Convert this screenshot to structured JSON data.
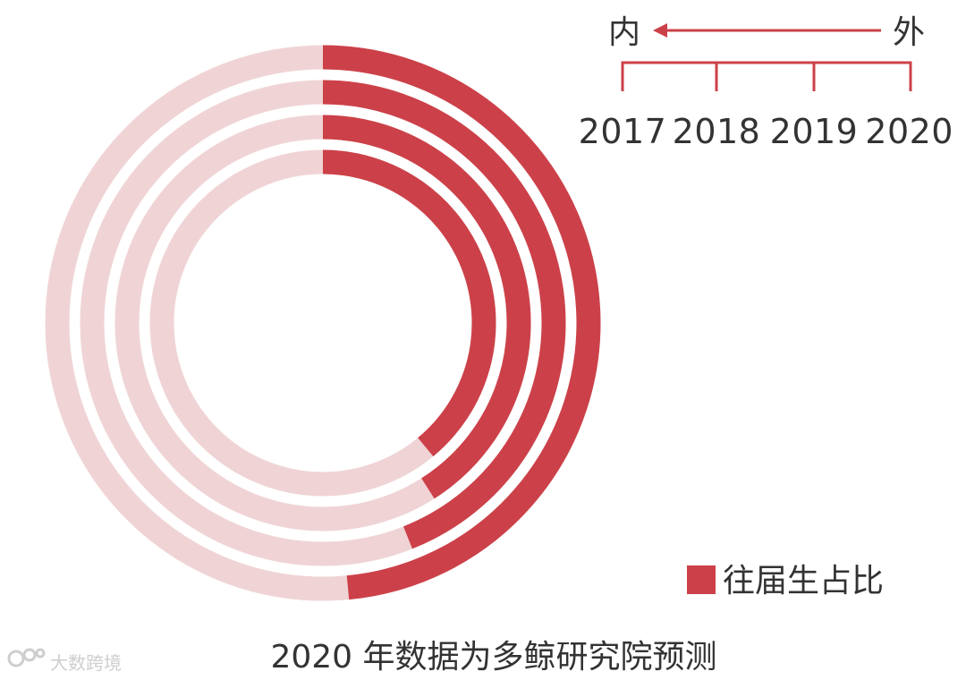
{
  "chart_data": {
    "type": "pie",
    "subtype": "concentric-donut",
    "title": "",
    "rings_order_inner_to_outer": [
      "2017",
      "2018",
      "2019",
      "2020"
    ],
    "series": [
      {
        "name": "2017",
        "value": 39
      },
      {
        "name": "2018",
        "value": 41
      },
      {
        "name": "2019",
        "value": 44
      },
      {
        "name": "2020",
        "value": 48.5
      }
    ],
    "unit": "%",
    "legend": {
      "label": "往届生占比",
      "placement": "bottom-right"
    },
    "direction": {
      "inner_label": "内",
      "outer_label": "外"
    },
    "note": "2020 年数据为多鲸研究院预测",
    "colors": {
      "filled": "#cc4149",
      "track": "#f0d4d5",
      "text": "#333333"
    }
  },
  "watermark": {
    "text": "大数跨境",
    "icon": "logo-icon"
  }
}
